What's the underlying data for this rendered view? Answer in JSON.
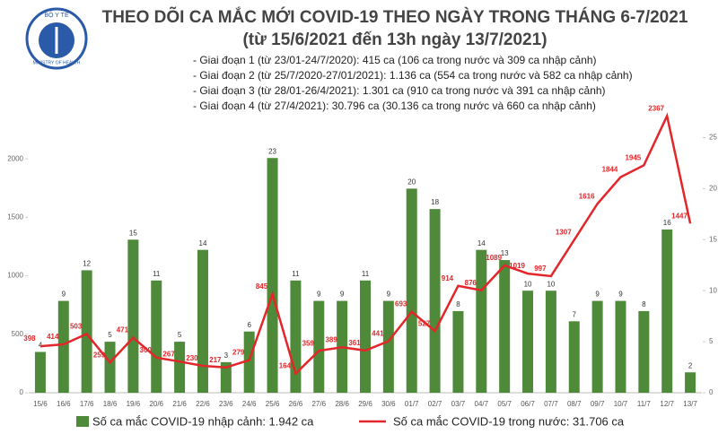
{
  "chart_data": {
    "type": "bar-line",
    "logo_text": [
      "BỘ Y TẾ",
      "MINISTRY OF HEALTH"
    ],
    "title": "THEO DÕI CA MẮC MỚI COVID-19 THEO NGÀY TRONG THÁNG 6-7/2021",
    "subtitle": "(từ 15/6/2021 đến 13h ngày 13/7/2021)",
    "notes": [
      "- Giai đoạn 1 (từ 23/01-24/7/2020): 415 ca (106 ca trong nước và 309 ca nhập cảnh)",
      "- Giai đoạn 2 (từ 25/7/2020-27/01/2021): 1.136 ca (554 ca trong nước và 582 ca nhập cảnh)",
      "- Giai đoạn 3 (từ 28/01-26/4/2021): 1.301 ca (910 ca trong nước và 391 ca nhập cảnh)",
      "- Giai đoạn 4 (từ 27/4/2021): 30.796 ca (30.136 ca trong nước và 660 ca nhập cảnh)"
    ],
    "categories": [
      "15/6",
      "16/6",
      "17/6",
      "18/6",
      "19/6",
      "20/6",
      "21/6",
      "22/6",
      "23/6",
      "24/6",
      "25/6",
      "26/6",
      "27/6",
      "28/6",
      "29/6",
      "30/6",
      "01/7",
      "02/7",
      "03/7",
      "04/7",
      "05/7",
      "06/7",
      "07/7",
      "08/7",
      "09/7",
      "10/7",
      "11/7",
      "12/7",
      "13/7"
    ],
    "series": [
      {
        "name": "Số ca mắc COVID-19 nhập cảnh: 1.942 ca",
        "type": "bar",
        "axis": "y2",
        "color": "#4f8a3a",
        "values": [
          4,
          9,
          12,
          5,
          15,
          11,
          5,
          14,
          3,
          6,
          23,
          11,
          9,
          9,
          11,
          9,
          20,
          18,
          8,
          14,
          13,
          10,
          10,
          7,
          9,
          9,
          8,
          16,
          2
        ]
      },
      {
        "name": "Số ca mắc COVID-19 trong nước: 31.706 ca",
        "type": "line",
        "axis": "y",
        "color": "#e3262a",
        "values": [
          398,
          414,
          503,
          259,
          471,
          300,
          267,
          230,
          217,
          279,
          845,
          164,
          359,
          389,
          361,
          441,
          693,
          527,
          914,
          876,
          1089,
          1019,
          997,
          1307,
          1616,
          1844,
          1945,
          2367,
          1447
        ]
      }
    ],
    "ylim": [
      0,
      2400
    ],
    "yticks": [
      0,
      500,
      1000,
      1500,
      2000
    ],
    "y2lim": [
      0,
      27.5
    ],
    "y2ticks": [
      0,
      5,
      10,
      15,
      20,
      25
    ]
  }
}
